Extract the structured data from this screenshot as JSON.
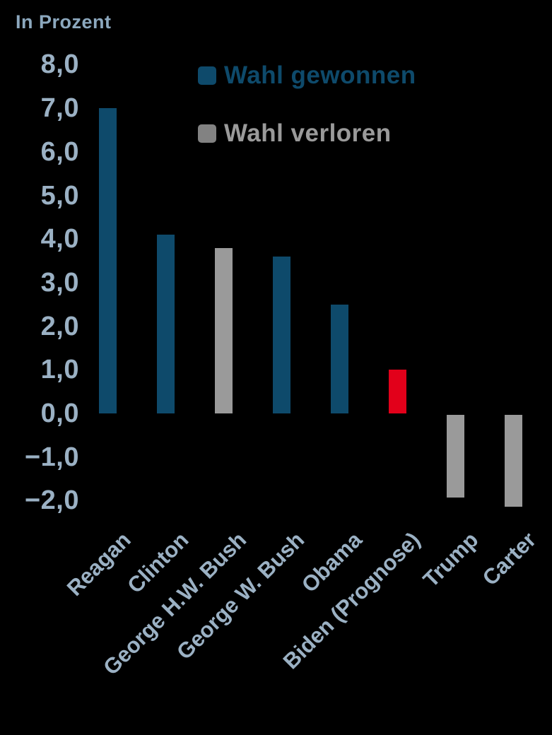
{
  "unit_label": "In Prozent",
  "legend": {
    "won_label": "Wahl gewonnen",
    "lost_label": "Wahl verloren"
  },
  "colors": {
    "won": "#0e4a6b",
    "lost": "#9a9a9a",
    "lost_swatch": "#828282",
    "forecast": "#e2001a",
    "axis_text": "#9bb1c4",
    "unit_text": "#8ca8be",
    "background": "#000000"
  },
  "chart_data": {
    "type": "bar",
    "title": "In Prozent",
    "categories": [
      "Reagan",
      "Clinton",
      "George H.W. Bush",
      "George W. Bush",
      "Obama",
      "Biden (Prognose)",
      "Trump",
      "Carter"
    ],
    "values": [
      7.0,
      4.1,
      3.8,
      3.6,
      2.5,
      1.0,
      -1.9,
      -2.1
    ],
    "status": [
      "won",
      "won",
      "lost",
      "won",
      "won",
      "forecast",
      "lost",
      "lost"
    ],
    "ylabel": "In Prozent",
    "ylim": [
      -2.0,
      8.0
    ],
    "ytick_step": 1.0,
    "ytick_labels": [
      "8,0",
      "7,0",
      "6,0",
      "5,0",
      "4,0",
      "3,0",
      "2,0",
      "1,0",
      "0,0",
      "−1,0",
      "−2,0"
    ],
    "ytick_values": [
      8,
      7,
      6,
      5,
      4,
      3,
      2,
      1,
      0,
      -1,
      -2
    ],
    "grid": false,
    "legend_position": "top-right",
    "legend_entries": [
      {
        "label": "Wahl gewonnen",
        "status": "won"
      },
      {
        "label": "Wahl verloren",
        "status": "lost"
      }
    ]
  }
}
